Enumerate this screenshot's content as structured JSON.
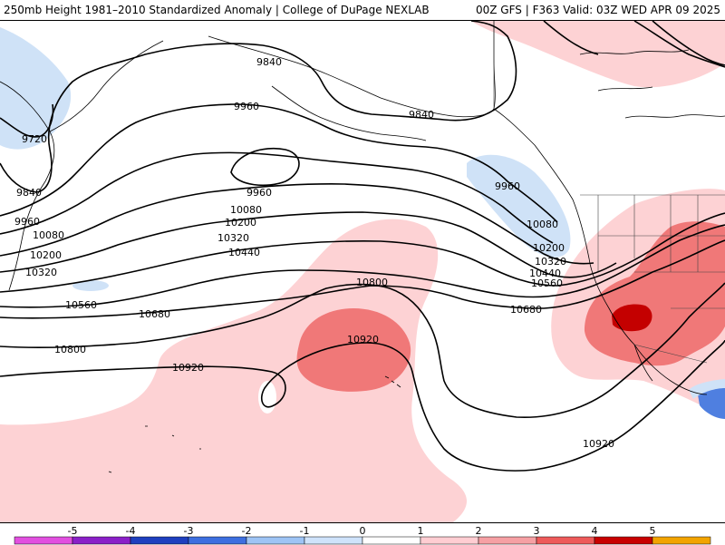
{
  "header": {
    "title_left": "250mb Height 1981–2010 Standardized Anomaly | College of DuPage NEXLAB",
    "title_right": "00Z GFS | F363 Valid: 03Z WED APR 09 2025"
  },
  "legend": {
    "ticks": [
      "-5",
      "-4",
      "-3",
      "-2",
      "-1",
      "0",
      "1",
      "2",
      "3",
      "4",
      "5"
    ],
    "colors": [
      "#e24fe0",
      "#8a1fc8",
      "#1e3fbf",
      "#3d6fe0",
      "#9ec4f5",
      "#cfe3fb",
      "#ffffff",
      "#ffcdd2",
      "#f6a0a4",
      "#ee5a5a",
      "#c80000",
      "#f2a400"
    ]
  },
  "map": {
    "anomaly_colors": {
      "light_blue": "#cfe2f7",
      "light_pink": "#fdd2d4",
      "mid_red": "#f07878",
      "dark_red": "#c40000",
      "blue": "#4f7fe0"
    },
    "contour_labels": [
      "9840",
      "9960",
      "9720",
      "9840",
      "9960",
      "9840",
      "9960",
      "10080",
      "10200",
      "10320",
      "10440",
      "10080",
      "10200",
      "10320",
      "10560",
      "10680",
      "10800",
      "10920",
      "10920",
      "10800",
      "10680",
      "10560",
      "10440",
      "10320",
      "10200",
      "10080",
      "9960",
      "10920"
    ]
  }
}
